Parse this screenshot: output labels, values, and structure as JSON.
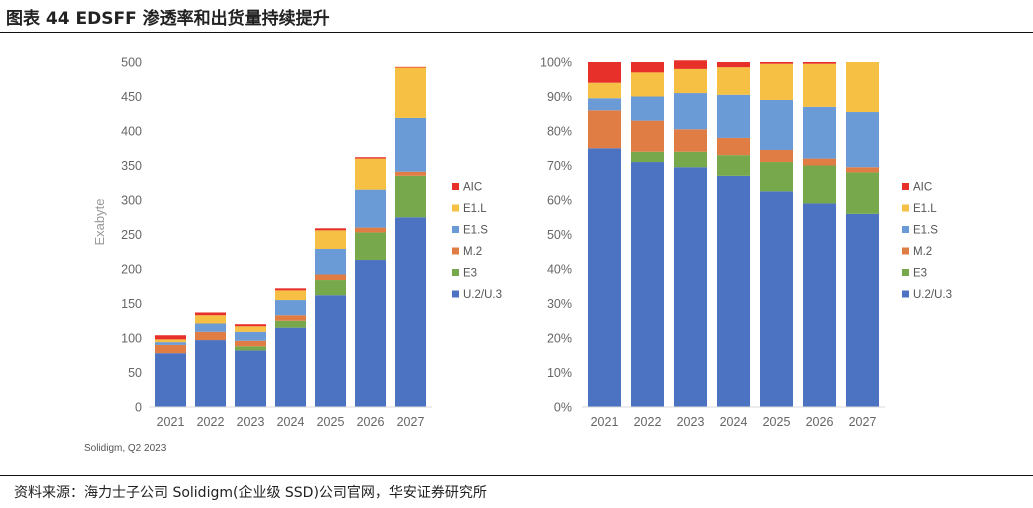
{
  "header": {
    "title": "图表 44 EDSFF 渗透率和出货量持续提升"
  },
  "footer": {
    "source": "资料来源：海力士子公司 Solidigm(企业级 SSD)公司官网，华安证券研究所",
    "credit": "Solidigm, Q2 2023"
  },
  "colors": {
    "AIC": "#e8302a",
    "E1.L": "#f5c044",
    "E1.S": "#6a9bd6",
    "M.2": "#e07d45",
    "E3": "#77a84c",
    "U.2/U.3": "#4c73c2"
  },
  "chart_data": [
    {
      "type": "bar",
      "stacked": true,
      "categories": [
        "2021",
        "2022",
        "2023",
        "2024",
        "2025",
        "2026",
        "2027"
      ],
      "ylabel": "Exabyte",
      "ylim": [
        0,
        500
      ],
      "yticks": [
        "0",
        "50",
        "100",
        "150",
        "200",
        "250",
        "300",
        "350",
        "400",
        "450",
        "500"
      ],
      "series": [
        {
          "name": "U.2/U.3",
          "values": [
            78,
            97,
            82,
            115,
            162,
            213,
            275
          ]
        },
        {
          "name": "E3",
          "values": [
            0,
            0,
            6,
            10,
            22,
            40,
            60
          ]
        },
        {
          "name": "M.2",
          "values": [
            12,
            12,
            8,
            8,
            8,
            7,
            6
          ]
        },
        {
          "name": "E1.S",
          "values": [
            4,
            12,
            13,
            22,
            37,
            55,
            78
          ]
        },
        {
          "name": "E1.L",
          "values": [
            4,
            12,
            8,
            14,
            27,
            45,
            73
          ]
        },
        {
          "name": "AIC",
          "values": [
            6,
            4,
            3,
            3,
            3,
            2,
            1
          ]
        }
      ],
      "legend": [
        "AIC",
        "E1.L",
        "E1.S",
        "M.2",
        "E3",
        "U.2/U.3"
      ]
    },
    {
      "type": "bar",
      "stacked": true,
      "percent": true,
      "categories": [
        "2021",
        "2022",
        "2023",
        "2024",
        "2025",
        "2026",
        "2027"
      ],
      "ylim": [
        0,
        100
      ],
      "yticks": [
        "0%",
        "10%",
        "20%",
        "30%",
        "40%",
        "50%",
        "60%",
        "70%",
        "80%",
        "90%",
        "100%"
      ],
      "series": [
        {
          "name": "U.2/U.3",
          "values": [
            75,
            71,
            69.5,
            67,
            62.5,
            59,
            56
          ]
        },
        {
          "name": "E3",
          "values": [
            0,
            3,
            4.5,
            6,
            8.5,
            11,
            12
          ]
        },
        {
          "name": "M.2",
          "values": [
            11,
            9,
            6.5,
            5,
            3.5,
            2,
            1.5
          ]
        },
        {
          "name": "E1.S",
          "values": [
            3.5,
            7,
            10.5,
            12.5,
            14.5,
            15,
            16
          ]
        },
        {
          "name": "E1.L",
          "values": [
            4.5,
            7,
            7,
            8,
            10.5,
            12.5,
            14.5
          ]
        },
        {
          "name": "AIC",
          "values": [
            6,
            3,
            2.5,
            1.5,
            0.5,
            0.5,
            0
          ]
        }
      ],
      "legend": [
        "AIC",
        "E1.L",
        "E1.S",
        "M.2",
        "E3",
        "U.2/U.3"
      ]
    }
  ]
}
